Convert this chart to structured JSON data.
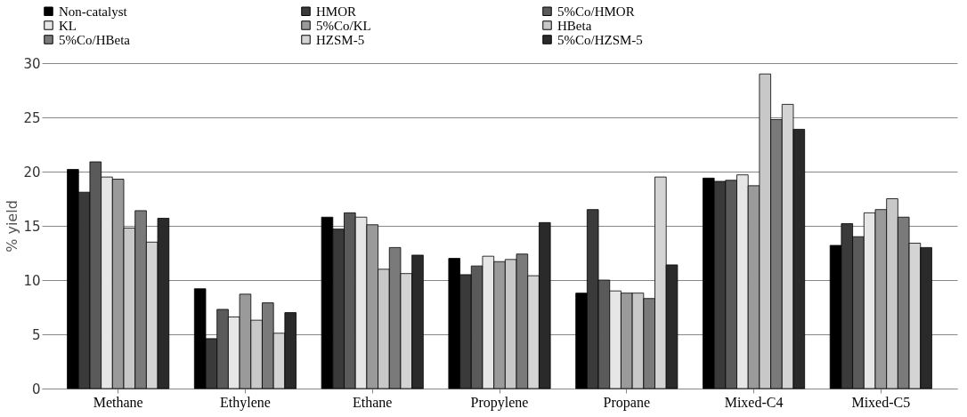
{
  "chart_data": {
    "type": "bar",
    "ylabel": "% yield",
    "categories": [
      "Methane",
      "Ethylene",
      "Ethane",
      "Propylene",
      "Propane",
      "Mixed-C4",
      "Mixed-C5"
    ],
    "series": [
      {
        "name": "Non-catalyst",
        "color": "#000000",
        "values": [
          20.2,
          9.2,
          15.8,
          12.0,
          8.8,
          19.4,
          13.2
        ]
      },
      {
        "name": "HMOR",
        "color": "#3a3a3a",
        "values": [
          18.1,
          4.6,
          14.7,
          10.5,
          16.5,
          19.1,
          15.2
        ]
      },
      {
        "name": "5%Co/HMOR",
        "color": "#5a5a5a",
        "values": [
          20.9,
          7.3,
          16.2,
          11.3,
          10.0,
          19.2,
          14.0
        ]
      },
      {
        "name": "KL",
        "color": "#e6e6e6",
        "values": [
          19.5,
          6.6,
          15.8,
          12.2,
          9.0,
          19.7,
          16.2
        ]
      },
      {
        "name": "5%Co/KL",
        "color": "#9a9a9a",
        "values": [
          19.3,
          8.7,
          15.1,
          11.7,
          8.8,
          18.7,
          16.5
        ]
      },
      {
        "name": "HBeta",
        "color": "#c8c8c8",
        "values": [
          14.8,
          6.3,
          11.0,
          11.9,
          8.8,
          29.0,
          17.5
        ]
      },
      {
        "name": "5%Co/HBeta",
        "color": "#7a7a7a",
        "values": [
          16.4,
          7.9,
          13.0,
          12.4,
          8.3,
          24.8,
          15.8
        ]
      },
      {
        "name": "HZSM-5",
        "color": "#d4d4d4",
        "values": [
          13.5,
          5.1,
          10.6,
          10.4,
          19.5,
          26.2,
          13.4
        ]
      },
      {
        "name": "5%Co/HZSM-5",
        "color": "#2a2a2a",
        "values": [
          15.7,
          7.0,
          12.3,
          15.3,
          11.4,
          23.9,
          13.0
        ]
      }
    ],
    "ylim": [
      0,
      30
    ],
    "yticks": [
      0,
      5,
      10,
      15,
      20,
      25,
      30
    ],
    "grid": "y",
    "legend": "top"
  }
}
